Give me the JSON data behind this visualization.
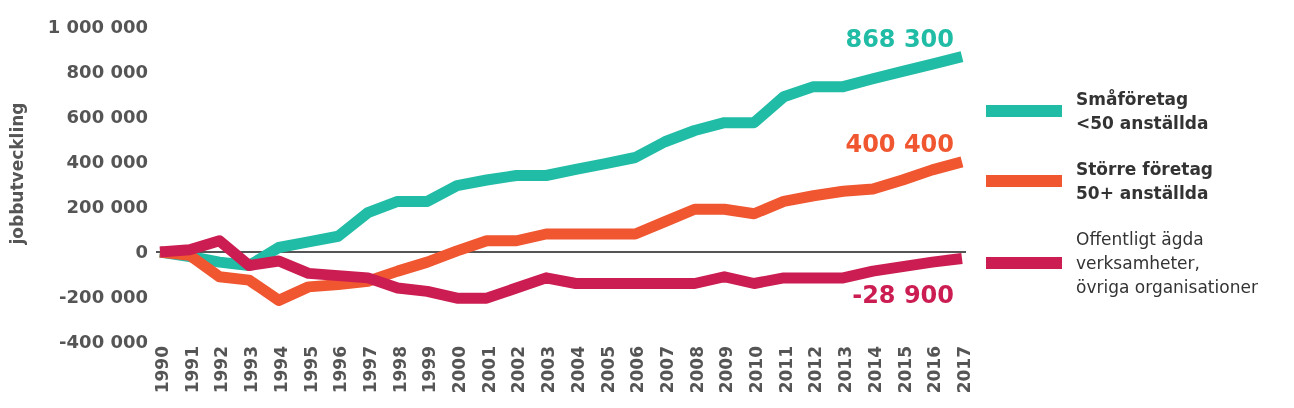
{
  "chart_data": {
    "type": "line",
    "ylabel": "jobbutveckling",
    "categories": [
      "1990",
      "1991",
      "1992",
      "1993",
      "1994",
      "1995",
      "1996",
      "1997",
      "1998",
      "1999",
      "2000",
      "2001",
      "2002",
      "2003",
      "2004",
      "2005",
      "2006",
      "2007",
      "2008",
      "2009",
      "2010",
      "2011",
      "2012",
      "2013",
      "2014",
      "2015",
      "2016",
      "2017"
    ],
    "series": [
      {
        "name": "Småföretag\n<50 anställda",
        "color": "#20bca5",
        "values": [
          0,
          -20000,
          -45000,
          -60000,
          20000,
          45000,
          70000,
          175000,
          225000,
          225000,
          295000,
          320000,
          340000,
          340000,
          367000,
          393000,
          420000,
          490000,
          540000,
          575000,
          575000,
          690000,
          735000,
          735000,
          770000,
          803000,
          835000,
          868300
        ],
        "value_labels": [
          null,
          null,
          null,
          null,
          null,
          null,
          null,
          null,
          null,
          null,
          null,
          null,
          null,
          null,
          null,
          null,
          null,
          null,
          null,
          null,
          null,
          null,
          null,
          null,
          null,
          null,
          null,
          "868 300"
        ]
      },
      {
        "name": "Större företag\n50+ anställda",
        "color": "#f05630",
        "values": [
          0,
          -15000,
          -110000,
          -125000,
          -215000,
          -155000,
          -145000,
          -130000,
          -85000,
          -45000,
          5000,
          50000,
          50000,
          80000,
          80000,
          80000,
          80000,
          135000,
          190000,
          190000,
          170000,
          225000,
          250000,
          270000,
          280000,
          320000,
          365000,
          400400
        ],
        "value_labels": [
          null,
          null,
          null,
          null,
          null,
          null,
          null,
          null,
          null,
          null,
          null,
          null,
          null,
          null,
          null,
          null,
          null,
          null,
          null,
          null,
          null,
          null,
          null,
          null,
          null,
          null,
          null,
          "400 400"
        ]
      },
      {
        "name": "Offentligt ägda verksamheter,\növriga organisationer",
        "color": "#cc1d52",
        "values": [
          0,
          10000,
          50000,
          -60000,
          -40000,
          -95000,
          -105000,
          -115000,
          -160000,
          -175000,
          -205000,
          -205000,
          -160000,
          -115000,
          -140000,
          -140000,
          -140000,
          -140000,
          -140000,
          -110000,
          -140000,
          -115000,
          -115000,
          -115000,
          -85000,
          -65000,
          -45000,
          -28900
        ],
        "value_labels": [
          null,
          null,
          null,
          null,
          null,
          null,
          null,
          null,
          null,
          null,
          null,
          null,
          null,
          null,
          null,
          null,
          null,
          null,
          null,
          null,
          null,
          null,
          null,
          null,
          null,
          null,
          null,
          "-28 900"
        ]
      }
    ],
    "ylim": [
      -400000,
      1000000
    ],
    "yticks": [
      {
        "value": -400000,
        "label": "-400 000"
      },
      {
        "value": -200000,
        "label": "-200 000"
      },
      0,
      {
        "value": 200000,
        "label": "200 000"
      },
      {
        "value": 400000,
        "label": "400 000"
      },
      {
        "value": 600000,
        "label": "600 000"
      },
      {
        "value": 800000,
        "label": "800 000"
      },
      {
        "value": 1000000,
        "label": "1 000 000"
      }
    ],
    "ref_lines": [
      {
        "axis": "y",
        "value": 0,
        "color": "#555555"
      }
    ],
    "grid": false,
    "legend": "right",
    "marker": "none",
    "line_style": "solid"
  }
}
